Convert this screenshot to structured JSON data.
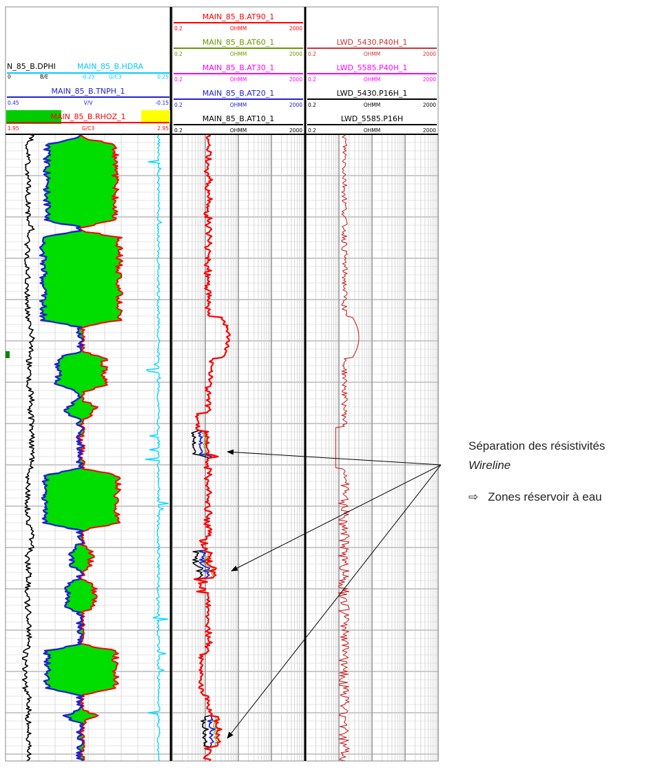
{
  "chart_data": {
    "type": "well_log",
    "tracks": [
      {
        "name": "track-1-porosity-density",
        "curves": [
          {
            "name": "N_85_B.DPHI",
            "unit": "B/E",
            "min": "0",
            "max": "",
            "color": "#000000"
          },
          {
            "name": "MAIN_85_B.HDRA",
            "unit": "G/C3",
            "min": "-0.25",
            "max": "0.25",
            "color": "#00c8ff"
          },
          {
            "name": "MAIN_85_B.TNPH_1",
            "unit": "V/V",
            "min": "0.45",
            "max": "-0.15",
            "color": "#2020d0"
          },
          {
            "name": "MAIN_85_B.RHOZ_1",
            "unit": "G/C3",
            "min": "1.95",
            "max": "2.95",
            "color": "#ff0000"
          }
        ],
        "fill_color": "#00dd00",
        "gr_fill_colors": [
          "#ffff00",
          "#00cc00"
        ]
      },
      {
        "name": "track-2-wireline-resistivity",
        "curves": [
          {
            "name": "MAIN_85_B.AT90_1",
            "unit": "OHMM",
            "min": "0.2",
            "max": "2000",
            "color": "#ff0000"
          },
          {
            "name": "MAIN_85_B.AT60_1",
            "unit": "OHMM",
            "min": "0.2",
            "max": "2000",
            "color": "#669900"
          },
          {
            "name": "MAIN_85_B.AT30_1",
            "unit": "OHMM",
            "min": "0.2",
            "max": "2000",
            "color": "#ff00ff"
          },
          {
            "name": "MAIN_85_B.AT20_1",
            "unit": "OHMM",
            "min": "0.2",
            "max": "2000",
            "color": "#2020d0"
          },
          {
            "name": "MAIN_85_B.AT10_1",
            "unit": "OHMM",
            "min": "0.2",
            "max": "2000",
            "color": "#000000"
          }
        ],
        "scale": "log"
      },
      {
        "name": "track-3-lwd-resistivity",
        "curves": [
          {
            "name": "LWD_5430.P40H_1",
            "unit": "OHMM",
            "min": "0.2",
            "max": "2000",
            "color": "#cc3333"
          },
          {
            "name": "LWD_5585.P40H_1",
            "unit": "OHMM",
            "min": "0.2",
            "max": "2000",
            "color": "#ff00ff"
          },
          {
            "name": "LWD_5430.P16H_1",
            "unit": "OHMM",
            "min": "0.2",
            "max": "2000",
            "color": "#000000"
          },
          {
            "name": "LWD_5585.P16H",
            "unit": "OHMM",
            "min": "0.2",
            "max": "2000",
            "color": "#000000"
          }
        ],
        "scale": "log"
      }
    ],
    "annotations": [
      {
        "text": "Séparation des résistivités"
      },
      {
        "text": "Wireline"
      },
      {
        "text": "Zones réservoir à eau"
      }
    ]
  },
  "annotation": {
    "title": "Séparation des résistivités",
    "subtitle": "Wireline",
    "arrow_glyph": "⇨",
    "conclusion": "Zones réservoir à eau"
  }
}
